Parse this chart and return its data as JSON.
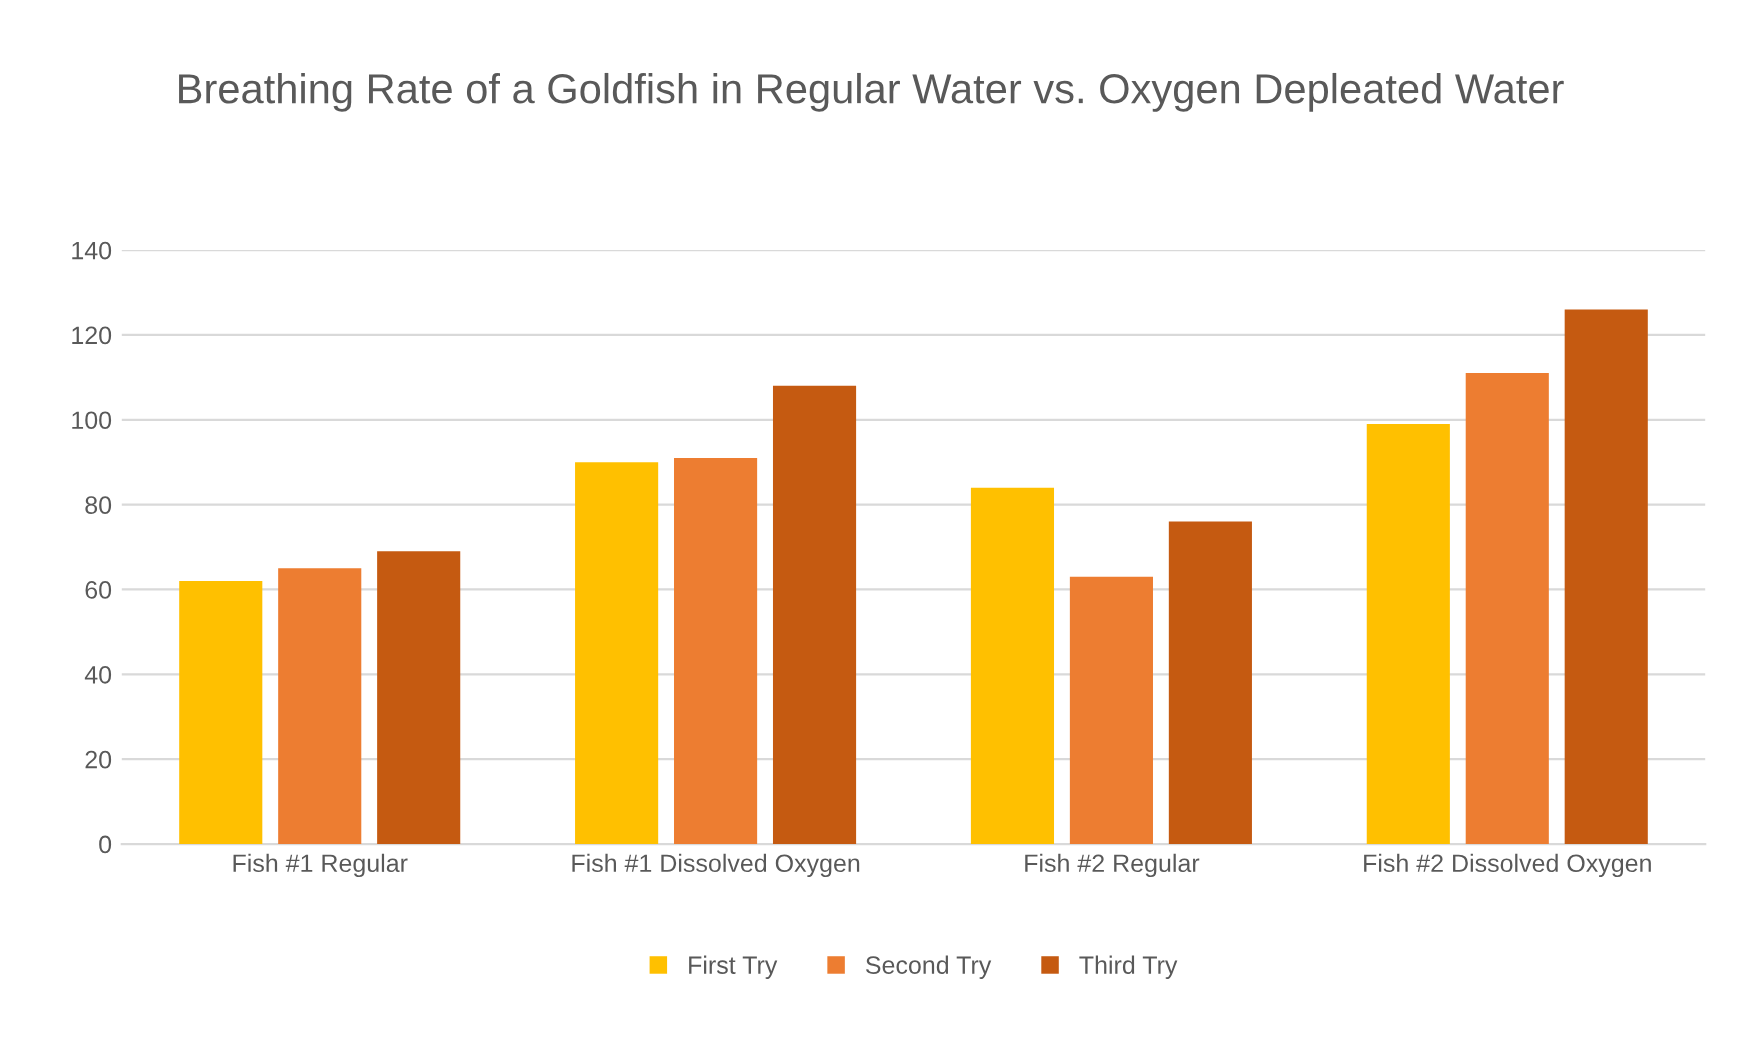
{
  "chart_data": {
    "type": "bar",
    "title": "Breathing Rate of a Goldfish in Regular Water vs. Oxygen Depleated Water",
    "categories": [
      "Fish #1 Regular",
      "Fish #1 Dissolved Oxygen",
      "Fish #2 Regular",
      "Fish #2 Dissolved Oxygen"
    ],
    "series": [
      {
        "name": "First Try",
        "color": "#ffc000",
        "values": [
          62,
          90,
          84,
          99
        ]
      },
      {
        "name": "Second Try",
        "color": "#ed7d31",
        "values": [
          65,
          91,
          63,
          111
        ]
      },
      {
        "name": "Third Try",
        "color": "#c55a11",
        "values": [
          69,
          108,
          76,
          126
        ]
      }
    ],
    "ylim": [
      0,
      140
    ],
    "yticks": [
      0,
      20,
      40,
      60,
      80,
      100,
      120,
      140
    ],
    "grid": "y",
    "legend": "bottom"
  }
}
